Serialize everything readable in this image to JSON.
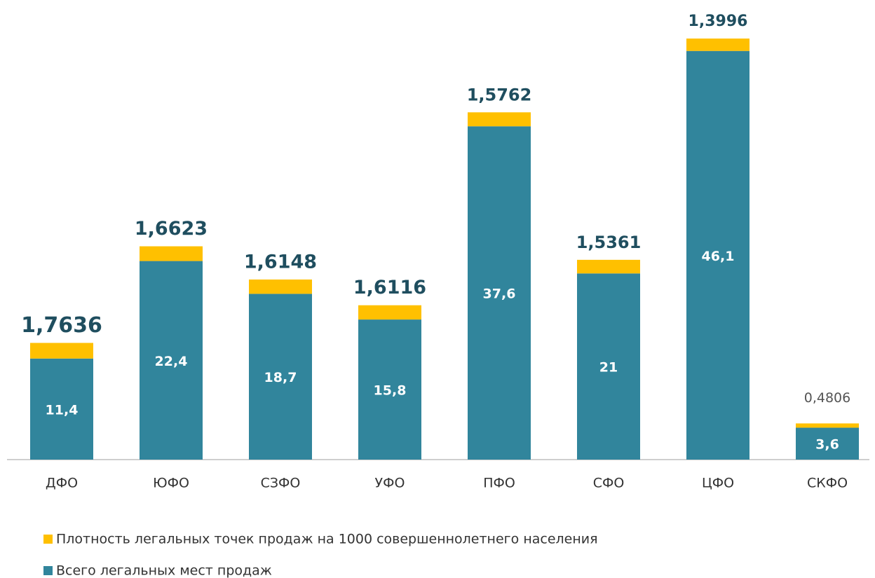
{
  "chart_data": {
    "type": "stacked-bar",
    "categories": [
      "ДФО",
      "ЮФО",
      "СЗФО",
      "УФО",
      "ПФО",
      "СФО",
      "ЦФО",
      "СКФО"
    ],
    "series": [
      {
        "name": "Всего легальных мест продаж",
        "color": "#31859c",
        "values": [
          11.4,
          22.4,
          18.7,
          15.8,
          37.6,
          21,
          46.1,
          3.6
        ],
        "value_labels": [
          "11,4",
          "22,4",
          "18,7",
          "15,8",
          "37,6",
          "21",
          "46,1",
          "3,6"
        ]
      },
      {
        "name": "Плотность легальных точек продаж на 1000 совершеннолетнего населения",
        "color": "#ffc000",
        "values": [
          1.7636,
          1.6623,
          1.6148,
          1.6116,
          1.5762,
          1.5361,
          1.3996,
          0.4806
        ],
        "value_labels": [
          "1,7636",
          "1,6623",
          "1,6148",
          "1,6116",
          "1,5762",
          "1,5361",
          "1,3996",
          "0,4806"
        ]
      }
    ]
  }
}
